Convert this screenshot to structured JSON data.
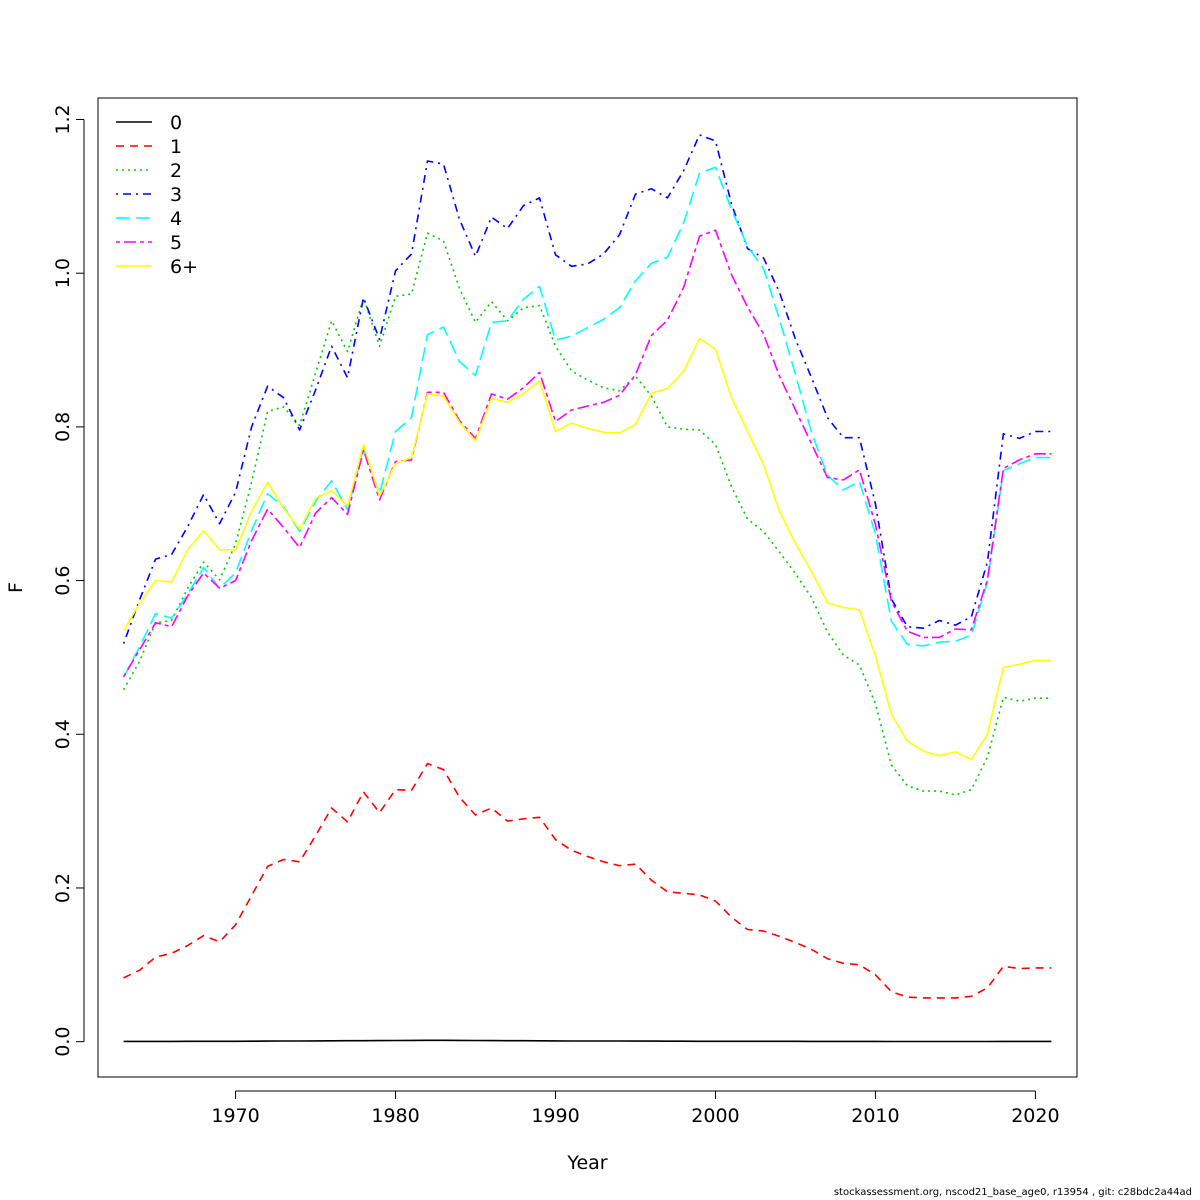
{
  "chart_data": {
    "type": "line",
    "xlabel": "Year",
    "ylabel": "F",
    "xlim": [
      1961.4,
      2022.6
    ],
    "ylim": [
      -0.046,
      1.228
    ],
    "x_ticks": [
      1970,
      1980,
      1990,
      2000,
      2010,
      2020
    ],
    "y_ticks": [
      0.0,
      0.2,
      0.4,
      0.6,
      0.8,
      1.0,
      1.2
    ],
    "y_tick_labels": [
      "0.0",
      "0.2",
      "0.4",
      "0.6",
      "0.8",
      "1.0",
      "1.2"
    ],
    "legend_position": "top-left",
    "grid": false,
    "x": [
      1963,
      1964,
      1965,
      1966,
      1967,
      1968,
      1969,
      1970,
      1971,
      1972,
      1973,
      1974,
      1975,
      1976,
      1977,
      1978,
      1979,
      1980,
      1981,
      1982,
      1983,
      1984,
      1985,
      1986,
      1987,
      1988,
      1989,
      1990,
      1991,
      1992,
      1993,
      1994,
      1995,
      1996,
      1997,
      1998,
      1999,
      2000,
      2001,
      2002,
      2003,
      2004,
      2005,
      2006,
      2007,
      2008,
      2009,
      2010,
      2011,
      2012,
      2013,
      2014,
      2015,
      2016,
      2017,
      2018,
      2019,
      2020,
      2021
    ],
    "series": [
      {
        "name": "0",
        "color": "#000000",
        "dash": "solid",
        "values": [
          0.0003,
          0.0003,
          0.0003,
          0.0003,
          0.0004,
          0.0004,
          0.0004,
          0.0005,
          0.0006,
          0.0007,
          0.0008,
          0.0009,
          0.001,
          0.0011,
          0.0012,
          0.0013,
          0.0014,
          0.0015,
          0.0016,
          0.0017,
          0.0018,
          0.0016,
          0.0015,
          0.0014,
          0.0013,
          0.0012,
          0.0011,
          0.001,
          0.0009,
          0.0009,
          0.0008,
          0.0008,
          0.0007,
          0.0007,
          0.0006,
          0.0006,
          0.0005,
          0.0005,
          0.0005,
          0.0004,
          0.0004,
          0.0004,
          0.0004,
          0.0003,
          0.0003,
          0.0003,
          0.0003,
          0.0003,
          0.0002,
          0.0002,
          0.0002,
          0.0002,
          0.0002,
          0.0002,
          0.0002,
          0.0003,
          0.0003,
          0.0003,
          0.0003
        ]
      },
      {
        "name": "1",
        "color": "#ff0000",
        "dash": "dashed",
        "values": [
          0.083,
          0.093,
          0.11,
          0.115,
          0.125,
          0.138,
          0.13,
          0.152,
          0.19,
          0.228,
          0.237,
          0.234,
          0.268,
          0.304,
          0.286,
          0.325,
          0.298,
          0.328,
          0.327,
          0.362,
          0.354,
          0.318,
          0.295,
          0.304,
          0.287,
          0.29,
          0.292,
          0.263,
          0.249,
          0.241,
          0.234,
          0.229,
          0.231,
          0.21,
          0.195,
          0.193,
          0.191,
          0.183,
          0.162,
          0.146,
          0.144,
          0.137,
          0.129,
          0.12,
          0.108,
          0.102,
          0.1,
          0.087,
          0.065,
          0.058,
          0.057,
          0.057,
          0.057,
          0.059,
          0.07,
          0.098,
          0.095,
          0.096,
          0.096
        ]
      },
      {
        "name": "2",
        "color": "#00cd00",
        "dash": "dotted",
        "values": [
          0.458,
          0.495,
          0.545,
          0.548,
          0.59,
          0.624,
          0.601,
          0.648,
          0.728,
          0.82,
          0.826,
          0.802,
          0.87,
          0.938,
          0.898,
          0.968,
          0.905,
          0.97,
          0.973,
          1.052,
          1.042,
          0.98,
          0.936,
          0.963,
          0.938,
          0.955,
          0.958,
          0.905,
          0.873,
          0.861,
          0.851,
          0.847,
          0.866,
          0.84,
          0.8,
          0.797,
          0.796,
          0.777,
          0.722,
          0.68,
          0.664,
          0.637,
          0.609,
          0.578,
          0.533,
          0.503,
          0.49,
          0.44,
          0.36,
          0.333,
          0.326,
          0.326,
          0.321,
          0.328,
          0.37,
          0.448,
          0.443,
          0.447,
          0.447
        ]
      },
      {
        "name": "3",
        "color": "#0000ff",
        "dash": "dotdash",
        "values": [
          0.518,
          0.575,
          0.628,
          0.634,
          0.67,
          0.712,
          0.674,
          0.715,
          0.8,
          0.853,
          0.838,
          0.796,
          0.848,
          0.905,
          0.864,
          0.968,
          0.914,
          1.003,
          1.025,
          1.146,
          1.142,
          1.07,
          1.022,
          1.073,
          1.058,
          1.088,
          1.098,
          1.024,
          1.009,
          1.012,
          1.025,
          1.05,
          1.103,
          1.11,
          1.098,
          1.133,
          1.18,
          1.172,
          1.09,
          1.032,
          1.02,
          0.975,
          0.914,
          0.864,
          0.812,
          0.786,
          0.786,
          0.7,
          0.576,
          0.54,
          0.538,
          0.548,
          0.542,
          0.553,
          0.624,
          0.791,
          0.785,
          0.794,
          0.794
        ]
      },
      {
        "name": "4",
        "color": "#00ffff",
        "dash": "longdash",
        "values": [
          0.474,
          0.514,
          0.557,
          0.551,
          0.582,
          0.617,
          0.59,
          0.61,
          0.665,
          0.713,
          0.696,
          0.664,
          0.703,
          0.73,
          0.692,
          0.772,
          0.713,
          0.794,
          0.812,
          0.92,
          0.93,
          0.885,
          0.867,
          0.936,
          0.938,
          0.966,
          0.983,
          0.913,
          0.918,
          0.929,
          0.94,
          0.955,
          0.99,
          1.013,
          1.021,
          1.065,
          1.13,
          1.138,
          1.083,
          1.035,
          1.006,
          0.94,
          0.868,
          0.793,
          0.737,
          0.718,
          0.729,
          0.661,
          0.547,
          0.517,
          0.515,
          0.52,
          0.521,
          0.529,
          0.598,
          0.743,
          0.752,
          0.76,
          0.76
        ]
      },
      {
        "name": "5",
        "color": "#ff00ff",
        "dash": "twodash",
        "values": [
          0.475,
          0.51,
          0.545,
          0.54,
          0.58,
          0.61,
          0.59,
          0.6,
          0.652,
          0.693,
          0.669,
          0.643,
          0.688,
          0.708,
          0.686,
          0.77,
          0.705,
          0.755,
          0.757,
          0.845,
          0.845,
          0.808,
          0.785,
          0.843,
          0.836,
          0.851,
          0.871,
          0.807,
          0.822,
          0.827,
          0.832,
          0.841,
          0.868,
          0.919,
          0.939,
          0.981,
          1.048,
          1.056,
          0.998,
          0.956,
          0.921,
          0.866,
          0.822,
          0.778,
          0.734,
          0.731,
          0.744,
          0.673,
          0.573,
          0.534,
          0.526,
          0.526,
          0.537,
          0.536,
          0.601,
          0.746,
          0.757,
          0.765,
          0.765
        ]
      },
      {
        "name": "6+",
        "color": "#ffff00",
        "dash": "solid",
        "values": [
          0.535,
          0.57,
          0.6,
          0.598,
          0.64,
          0.665,
          0.64,
          0.64,
          0.69,
          0.728,
          0.694,
          0.667,
          0.707,
          0.717,
          0.697,
          0.777,
          0.71,
          0.752,
          0.76,
          0.843,
          0.84,
          0.806,
          0.782,
          0.837,
          0.832,
          0.843,
          0.86,
          0.794,
          0.805,
          0.798,
          0.793,
          0.792,
          0.803,
          0.844,
          0.85,
          0.872,
          0.915,
          0.901,
          0.838,
          0.794,
          0.751,
          0.69,
          0.648,
          0.612,
          0.571,
          0.565,
          0.562,
          0.502,
          0.426,
          0.391,
          0.378,
          0.372,
          0.377,
          0.367,
          0.4,
          0.487,
          0.491,
          0.496,
          0.496
        ]
      }
    ]
  },
  "footer": "stockassessment.org, nscod21_base_age0, r13954 , git: c28bdc2a44ad"
}
